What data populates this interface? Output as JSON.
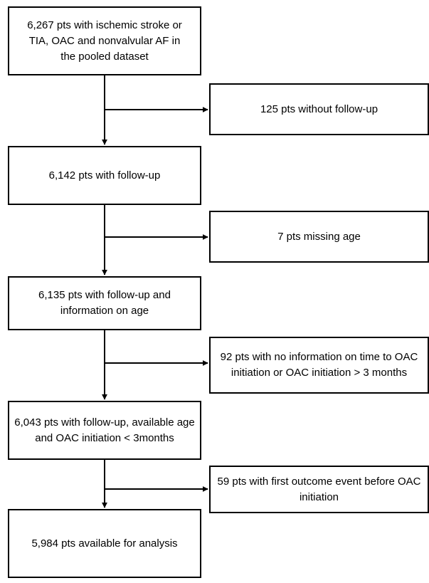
{
  "flowchart": {
    "main_steps": [
      {
        "text": "6,267 pts with ischemic stroke or TIA, OAC and nonvalvular AF in the pooled dataset"
      },
      {
        "text": "6,142 pts with follow-up"
      },
      {
        "text": "6,135 pts with follow-up and information on age"
      },
      {
        "text": "6,043 pts with follow-up, available age and OAC initiation < 3months"
      },
      {
        "text": "5,984 pts available for analysis"
      }
    ],
    "exclusions": [
      {
        "text": "125 pts without follow-up"
      },
      {
        "text": "7 pts missing age"
      },
      {
        "text": "92 pts with no information on time to OAC initiation or OAC initiation > 3 months"
      },
      {
        "text": "59 pts with first outcome event before OAC initiation"
      }
    ]
  }
}
